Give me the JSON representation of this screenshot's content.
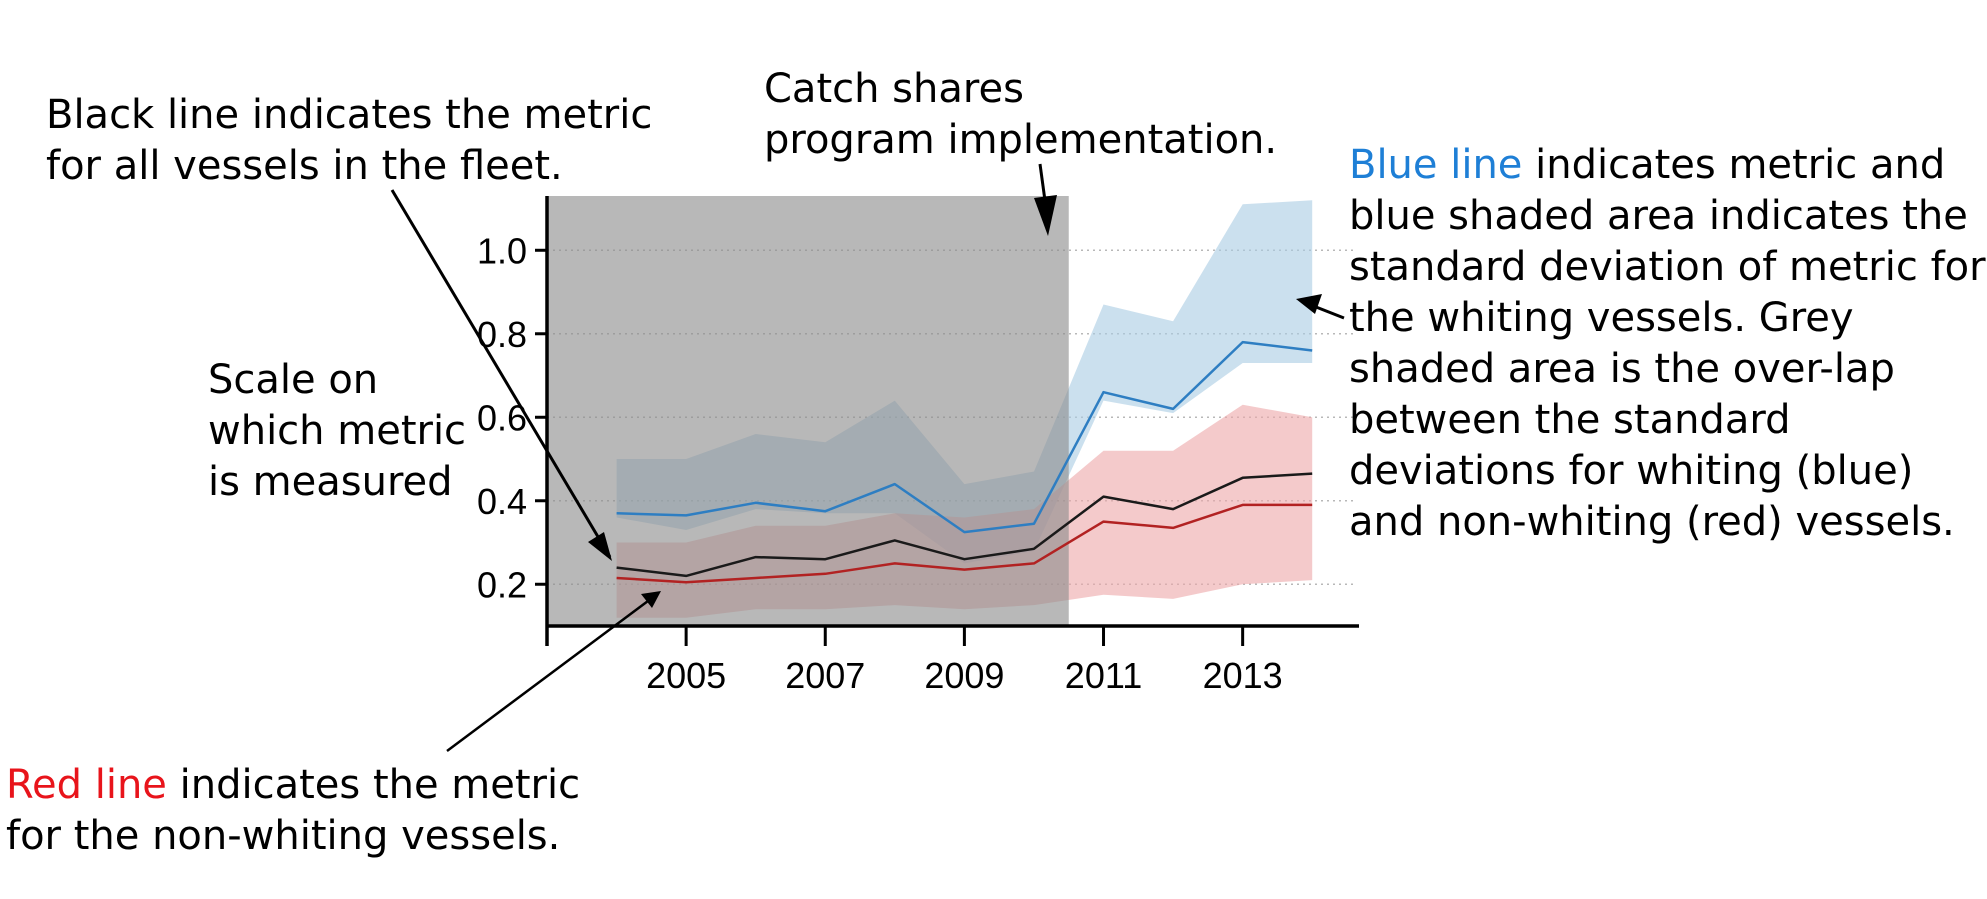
{
  "chart_data": {
    "type": "line",
    "x": [
      2004,
      2005,
      2006,
      2007,
      2008,
      2009,
      2010,
      2011,
      2012,
      2013,
      2014
    ],
    "xlim": [
      2003.0,
      2014.5
    ],
    "ylim": [
      0.1,
      1.13
    ],
    "x_ticks": [
      "2005",
      "2007",
      "2009",
      "2011",
      "2013"
    ],
    "y_ticks": [
      "0.2",
      "0.4",
      "0.6",
      "0.8",
      "1.0"
    ],
    "shaded_period": {
      "start": 2003.0,
      "end": 2010.5
    },
    "grid": "horizontal dotted",
    "series": [
      {
        "key": "blue",
        "values": [
          0.37,
          0.365,
          0.395,
          0.375,
          0.44,
          0.325,
          0.345,
          0.66,
          0.62,
          0.78,
          0.76
        ],
        "band_lower": [
          0.36,
          0.33,
          0.38,
          0.37,
          0.37,
          0.25,
          0.28,
          0.64,
          0.61,
          0.73,
          0.73
        ],
        "band_upper": [
          0.5,
          0.5,
          0.56,
          0.54,
          0.64,
          0.44,
          0.47,
          0.87,
          0.83,
          1.11,
          1.12
        ],
        "line_color": "#2E7EC2",
        "band_color": "#A9CCE3"
      },
      {
        "key": "black",
        "values": [
          0.24,
          0.22,
          0.265,
          0.26,
          0.305,
          0.26,
          0.285,
          0.41,
          0.38,
          0.455,
          0.465
        ],
        "line_color": "#1A1A1A"
      },
      {
        "key": "red",
        "values": [
          0.215,
          0.205,
          0.215,
          0.225,
          0.25,
          0.235,
          0.25,
          0.35,
          0.335,
          0.39,
          0.39
        ],
        "band_lower": [
          0.12,
          0.12,
          0.14,
          0.14,
          0.15,
          0.14,
          0.15,
          0.175,
          0.165,
          0.2,
          0.21
        ],
        "band_upper": [
          0.3,
          0.3,
          0.34,
          0.34,
          0.37,
          0.36,
          0.38,
          0.52,
          0.52,
          0.63,
          0.6
        ],
        "line_color": "#B22222",
        "band_color": "#EDA7A9"
      }
    ]
  },
  "annotations": {
    "black_line": [
      "Black line indicates the metric",
      "for all vessels in the fleet."
    ],
    "catch_shares": [
      "Catch shares",
      "program implementation."
    ],
    "blue_line_highlight": "Blue line",
    "blue_line_rest": " indicates metric and",
    "blue_lines": [
      "blue shaded area indicates the",
      "standard deviation of metric for",
      "the whiting vessels. Grey",
      "shaded area is the over-lap",
      "between the standard",
      "deviations for whiting (blue)",
      "and non-whiting (red) vessels."
    ],
    "scale": [
      "Scale on",
      "which metric",
      "is measured"
    ],
    "red_line_highlight": "Red line",
    "red_line_rest": " indicates the metric",
    "red_line_second": "for the non-whiting vessels."
  },
  "colors": {
    "blue_text": "#1E7FD6",
    "red_text": "#E8141B",
    "shade_grey": "#8C8C8C"
  }
}
